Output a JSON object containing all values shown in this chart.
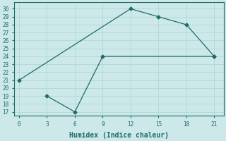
{
  "xlabel": "Humidex (Indice chaleur)",
  "line1_x": [
    0,
    12,
    15,
    18,
    21
  ],
  "line1_y": [
    21,
    30,
    29,
    28,
    24
  ],
  "line2_x": [
    3,
    6,
    9,
    21
  ],
  "line2_y": [
    19,
    17,
    24,
    24
  ],
  "line_color": "#1f6b6b",
  "marker": "D",
  "marker_size": 2.5,
  "bg_color": "#cce8e8",
  "grid_color": "#b0d8d8",
  "xlim": [
    -0.5,
    22
  ],
  "ylim": [
    16.5,
    30.8
  ],
  "xticks": [
    0,
    3,
    6,
    9,
    12,
    15,
    18,
    21
  ],
  "yticks": [
    17,
    18,
    19,
    20,
    21,
    22,
    23,
    24,
    25,
    26,
    27,
    28,
    29,
    30
  ],
  "tick_fontsize": 5.5,
  "label_fontsize": 7,
  "font_family": "monospace"
}
